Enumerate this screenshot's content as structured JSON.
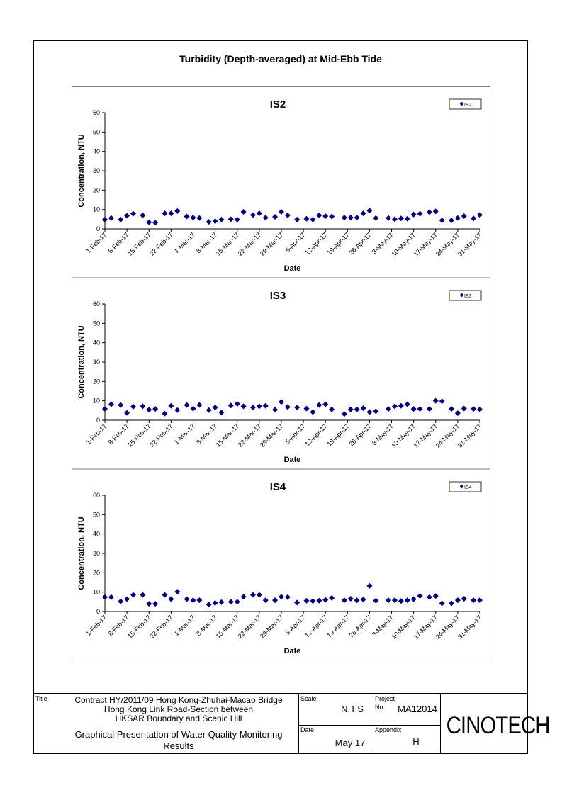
{
  "page_title": "Turbidity (Depth-averaged) at Mid-Ebb Tide",
  "chart_data": [
    {
      "type": "scatter",
      "title": "IS2",
      "xlabel": "Date",
      "ylabel": "Concentration, NTU",
      "ylim": [
        0,
        60
      ],
      "yticks": [
        0,
        10,
        20,
        30,
        40,
        50,
        60
      ],
      "xlim": [
        "2017-02-01",
        "2017-05-31"
      ],
      "xtick_labels": [
        "1-Feb-17",
        "8-Feb-17",
        "15-Feb-17",
        "22-Feb-17",
        "1-Mar-17",
        "8-Mar-17",
        "15-Mar-17",
        "22-Mar-17",
        "29-Mar-17",
        "5-Apr-17",
        "12-Apr-17",
        "19-Apr-17",
        "26-Apr-17",
        "3-May-17",
        "10-May-17",
        "17-May-17",
        "24-May-17",
        "31-May-17"
      ],
      "legend": "top-right",
      "color": "#000080",
      "series": [
        {
          "name": "IS2",
          "x": [
            "2017-02-01",
            "2017-02-03",
            "2017-02-06",
            "2017-02-08",
            "2017-02-10",
            "2017-02-13",
            "2017-02-15",
            "2017-02-17",
            "2017-02-20",
            "2017-02-22",
            "2017-02-24",
            "2017-02-27",
            "2017-03-01",
            "2017-03-03",
            "2017-03-06",
            "2017-03-08",
            "2017-03-10",
            "2017-03-13",
            "2017-03-15",
            "2017-03-17",
            "2017-03-20",
            "2017-03-22",
            "2017-03-24",
            "2017-03-27",
            "2017-03-29",
            "2017-03-31",
            "2017-04-03",
            "2017-04-06",
            "2017-04-08",
            "2017-04-10",
            "2017-04-12",
            "2017-04-14",
            "2017-04-18",
            "2017-04-20",
            "2017-04-22",
            "2017-04-24",
            "2017-04-26",
            "2017-04-28",
            "2017-05-02",
            "2017-05-04",
            "2017-05-06",
            "2017-05-08",
            "2017-05-10",
            "2017-05-12",
            "2017-05-15",
            "2017-05-17",
            "2017-05-19",
            "2017-05-22",
            "2017-05-24",
            "2017-05-26",
            "2017-05-29",
            "2017-05-31"
          ],
          "values": [
            4.8,
            5.6,
            4.8,
            6.8,
            7.8,
            7.0,
            3.4,
            3.2,
            8.0,
            8.0,
            9.2,
            6.4,
            5.8,
            5.6,
            3.6,
            4.0,
            4.8,
            5.0,
            4.8,
            8.8,
            7.2,
            8.0,
            5.8,
            6.2,
            8.8,
            7.0,
            4.8,
            5.2,
            4.8,
            7.0,
            6.6,
            6.4,
            5.8,
            5.8,
            5.8,
            8.0,
            9.4,
            5.6,
            5.6,
            5.0,
            5.4,
            5.2,
            7.4,
            7.8,
            8.6,
            9.0,
            4.4,
            4.4,
            5.6,
            6.6,
            5.4,
            7.2
          ]
        }
      ]
    },
    {
      "type": "scatter",
      "title": "IS3",
      "xlabel": "Date",
      "ylabel": "Concentration, NTU",
      "ylim": [
        0,
        60
      ],
      "yticks": [
        0,
        10,
        20,
        30,
        40,
        50,
        60
      ],
      "xlim": [
        "2017-02-01",
        "2017-05-31"
      ],
      "xtick_labels": [
        "1-Feb-17",
        "8-Feb-17",
        "15-Feb-17",
        "22-Feb-17",
        "1-Mar-17",
        "8-Mar-17",
        "15-Mar-17",
        "22-Mar-17",
        "29-Mar-17",
        "5-Apr-17",
        "12-Apr-17",
        "19-Apr-17",
        "26-Apr-17",
        "3-May-17",
        "10-May-17",
        "17-May-17",
        "24-May-17",
        "31-May-17"
      ],
      "legend": "top-right",
      "color": "#000080",
      "series": [
        {
          "name": "IS3",
          "x": [
            "2017-02-01",
            "2017-02-03",
            "2017-02-06",
            "2017-02-08",
            "2017-02-10",
            "2017-02-13",
            "2017-02-15",
            "2017-02-17",
            "2017-02-20",
            "2017-02-22",
            "2017-02-24",
            "2017-02-27",
            "2017-03-01",
            "2017-03-03",
            "2017-03-06",
            "2017-03-08",
            "2017-03-10",
            "2017-03-13",
            "2017-03-15",
            "2017-03-17",
            "2017-03-20",
            "2017-03-22",
            "2017-03-24",
            "2017-03-27",
            "2017-03-29",
            "2017-03-31",
            "2017-04-03",
            "2017-04-06",
            "2017-04-08",
            "2017-04-10",
            "2017-04-12",
            "2017-04-14",
            "2017-04-18",
            "2017-04-20",
            "2017-04-22",
            "2017-04-24",
            "2017-04-26",
            "2017-04-28",
            "2017-05-02",
            "2017-05-04",
            "2017-05-06",
            "2017-05-08",
            "2017-05-10",
            "2017-05-12",
            "2017-05-15",
            "2017-05-17",
            "2017-05-19",
            "2017-05-22",
            "2017-05-24",
            "2017-05-26",
            "2017-05-29",
            "2017-05-31"
          ],
          "values": [
            5.8,
            8.2,
            7.8,
            3.8,
            7.0,
            7.2,
            5.4,
            5.8,
            3.4,
            7.4,
            5.2,
            7.8,
            6.0,
            7.8,
            5.2,
            6.6,
            4.0,
            7.6,
            8.4,
            7.2,
            6.6,
            7.2,
            7.4,
            5.4,
            9.4,
            6.8,
            6.6,
            6.0,
            4.2,
            7.8,
            8.2,
            5.6,
            3.2,
            5.6,
            5.6,
            6.2,
            4.2,
            4.6,
            5.8,
            7.2,
            7.4,
            8.2,
            5.8,
            5.8,
            5.8,
            10.0,
            9.8,
            5.8,
            3.6,
            6.0,
            5.8,
            5.6
          ]
        }
      ]
    },
    {
      "type": "scatter",
      "title": "IS4",
      "xlabel": "Date",
      "ylabel": "Concentration, NTU",
      "ylim": [
        0,
        60
      ],
      "yticks": [
        0,
        10,
        20,
        30,
        40,
        50,
        60
      ],
      "xlim": [
        "2017-02-01",
        "2017-05-31"
      ],
      "xtick_labels": [
        "1-Feb-17",
        "8-Feb-17",
        "15-Feb-17",
        "22-Feb-17",
        "1-Mar-17",
        "8-Mar-17",
        "15-Mar-17",
        "22-Mar-17",
        "29-Mar-17",
        "5-Apr-17",
        "12-Apr-17",
        "19-Apr-17",
        "26-Apr-17",
        "3-May-17",
        "10-May-17",
        "17-May-17",
        "24-May-17",
        "31-May-17"
      ],
      "legend": "top-right",
      "color": "#000080",
      "series": [
        {
          "name": "IS4",
          "x": [
            "2017-02-01",
            "2017-02-03",
            "2017-02-06",
            "2017-02-08",
            "2017-02-10",
            "2017-02-13",
            "2017-02-15",
            "2017-02-17",
            "2017-02-20",
            "2017-02-22",
            "2017-02-24",
            "2017-02-27",
            "2017-03-01",
            "2017-03-03",
            "2017-03-06",
            "2017-03-08",
            "2017-03-10",
            "2017-03-13",
            "2017-03-15",
            "2017-03-17",
            "2017-03-20",
            "2017-03-22",
            "2017-03-24",
            "2017-03-27",
            "2017-03-29",
            "2017-03-31",
            "2017-04-03",
            "2017-04-06",
            "2017-04-08",
            "2017-04-10",
            "2017-04-12",
            "2017-04-14",
            "2017-04-18",
            "2017-04-20",
            "2017-04-22",
            "2017-04-24",
            "2017-04-26",
            "2017-04-28",
            "2017-05-02",
            "2017-05-04",
            "2017-05-06",
            "2017-05-08",
            "2017-05-10",
            "2017-05-12",
            "2017-05-15",
            "2017-05-17",
            "2017-05-19",
            "2017-05-22",
            "2017-05-24",
            "2017-05-26",
            "2017-05-29",
            "2017-05-31"
          ],
          "values": [
            7.4,
            7.4,
            5.2,
            6.4,
            8.6,
            8.6,
            4.0,
            4.0,
            8.6,
            6.4,
            10.2,
            6.4,
            5.8,
            5.8,
            3.6,
            4.4,
            4.8,
            5.0,
            5.0,
            7.6,
            8.6,
            8.6,
            5.8,
            5.8,
            7.6,
            7.4,
            4.6,
            5.6,
            5.4,
            5.6,
            6.0,
            7.0,
            5.8,
            6.6,
            5.8,
            6.2,
            13.2,
            5.6,
            5.8,
            5.8,
            5.4,
            5.8,
            6.4,
            8.0,
            7.4,
            8.0,
            4.2,
            4.2,
            5.8,
            6.6,
            5.8,
            5.8
          ]
        }
      ]
    }
  ],
  "title_block": {
    "title_label": "Title",
    "title_lines": [
      "Contract HY/2011/09 Hong Kong-Zhuhai-Macao Bridge",
      "Hong Kong Link Road-Section between",
      "HKSAR Boundary and Scenic Hill"
    ],
    "subtitle_lines": [
      "Graphical Presentation of Water Quality Monitoring",
      "Results"
    ],
    "scale_label": "Scale",
    "scale_value": "N.T.S",
    "date_label": "Date",
    "date_value": "May 17",
    "project_label": "Project",
    "no_label": "No.",
    "project_value": "MA12014",
    "appendix_label": "Appendix",
    "appendix_value": "H",
    "logo_text": "CINOTECH"
  }
}
